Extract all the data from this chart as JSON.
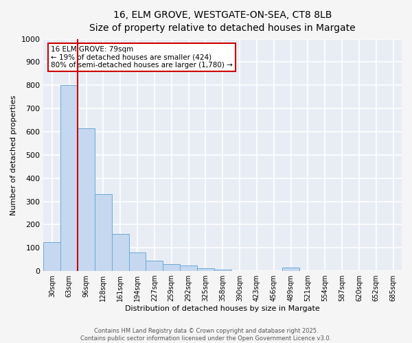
{
  "title": "16, ELM GROVE, WESTGATE-ON-SEA, CT8 8LB",
  "subtitle": "Size of property relative to detached houses in Margate",
  "xlabel": "Distribution of detached houses by size in Margate",
  "ylabel": "Number of detached properties",
  "bar_color": "#c5d8f0",
  "bar_edge_color": "#6aaad4",
  "axes_bg_color": "#e8edf5",
  "grid_color": "#ffffff",
  "annotation_line_color": "#cc0000",
  "annotation_box_color": "#cc0000",
  "fig_bg_color": "#f5f5f5",
  "categories": [
    "30sqm",
    "63sqm",
    "96sqm",
    "128sqm",
    "161sqm",
    "194sqm",
    "227sqm",
    "259sqm",
    "292sqm",
    "325sqm",
    "358sqm",
    "390sqm",
    "423sqm",
    "456sqm",
    "489sqm",
    "521sqm",
    "554sqm",
    "587sqm",
    "620sqm",
    "652sqm",
    "685sqm"
  ],
  "values": [
    125,
    800,
    615,
    330,
    160,
    80,
    45,
    30,
    25,
    12,
    5,
    0,
    0,
    0,
    15,
    0,
    0,
    0,
    0,
    0,
    0
  ],
  "annotation_text_line1": "16 ELM GROVE: 79sqm",
  "annotation_text_line2": "← 19% of detached houses are smaller (424)",
  "annotation_text_line3": "80% of semi-detached houses are larger (1,780) →",
  "ylim": [
    0,
    1000
  ],
  "yticks": [
    0,
    100,
    200,
    300,
    400,
    500,
    600,
    700,
    800,
    900,
    1000
  ],
  "footer_line1": "Contains HM Land Registry data © Crown copyright and database right 2025.",
  "footer_line2": "Contains public sector information licensed under the Open Government Licence v3.0."
}
